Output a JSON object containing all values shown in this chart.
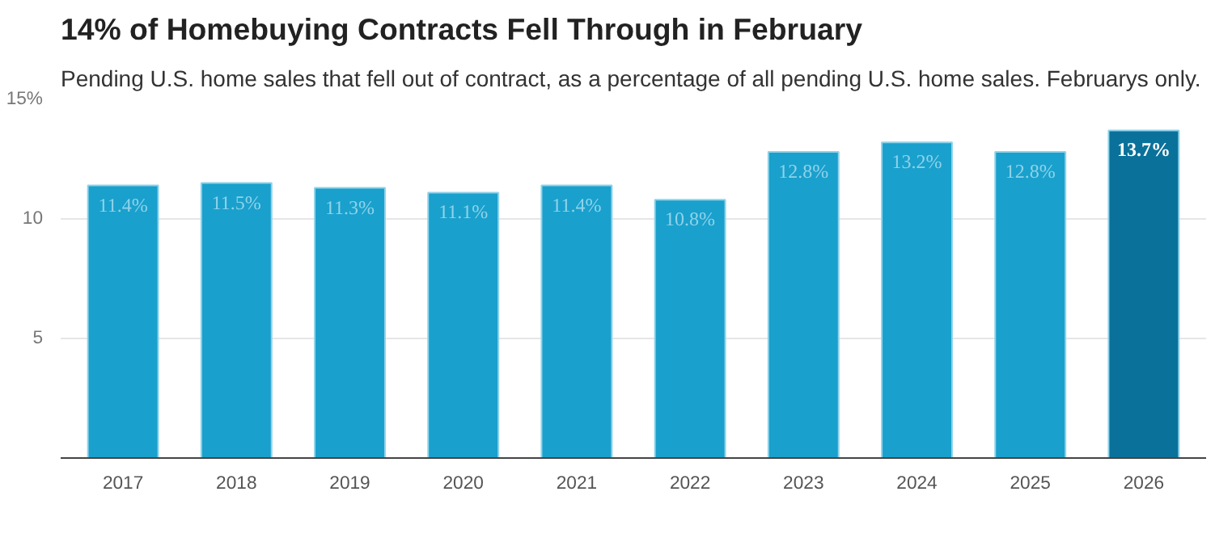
{
  "chart_data": {
    "type": "bar",
    "title": "14% of Homebuying Contracts Fell Through in February",
    "subtitle": "Pending U.S. home sales that fell out of contract, as a percentage of all pending U.S. home sales. Februarys only.",
    "categories": [
      "2017",
      "2018",
      "2019",
      "2020",
      "2021",
      "2022",
      "2023",
      "2024",
      "2025",
      "2026"
    ],
    "values": [
      11.4,
      11.5,
      11.3,
      11.1,
      11.4,
      10.8,
      12.8,
      13.2,
      12.8,
      13.7
    ],
    "colors": [
      "#1aa0cc",
      "#1aa0cc",
      "#1aa0cc",
      "#1aa0cc",
      "#1aa0cc",
      "#1aa0cc",
      "#1aa0cc",
      "#1aa0cc",
      "#1aa0cc",
      "#0a719a"
    ],
    "value_labels": [
      "11.4%",
      "11.5%",
      "11.3%",
      "11.1%",
      "11.4%",
      "10.8%",
      "12.8%",
      "13.2%",
      "12.8%",
      "13.7%"
    ],
    "ylim": [
      0,
      15
    ],
    "yticks": [
      5,
      10,
      {
        "value": 15,
        "label": "15%"
      }
    ],
    "grid": "y"
  }
}
